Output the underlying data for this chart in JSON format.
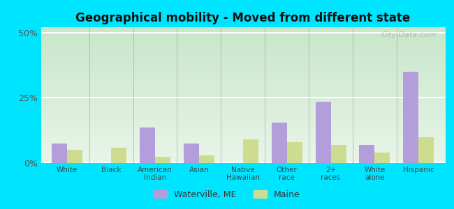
{
  "title": "Geographical mobility - Moved from different state",
  "categories": [
    "White",
    "Black",
    "American\nIndian",
    "Asian",
    "Native\nHawaiian",
    "Other\nrace",
    "2+\nraces",
    "White\nalone",
    "Hispanic"
  ],
  "waterville_values": [
    7.5,
    0,
    13.5,
    7.5,
    0,
    15.5,
    23.5,
    7.0,
    35.0
  ],
  "maine_values": [
    5.0,
    6.0,
    2.5,
    3.0,
    9.0,
    8.0,
    7.0,
    4.0,
    10.0
  ],
  "waterville_color": "#b39ddb",
  "maine_color": "#cddc8e",
  "ylim": [
    0,
    52
  ],
  "yticks": [
    0,
    25,
    50
  ],
  "ytick_labels": [
    "0%",
    "25%",
    "50%"
  ],
  "legend_labels": [
    "Waterville, ME",
    "Maine"
  ],
  "bg_outer": "#00e5ff",
  "bg_plot_color_top": "#c8e6c9",
  "bg_plot_color_bottom": "#e8f5e9",
  "grid_color": "#ffffff",
  "bar_width": 0.35,
  "watermark": "City-Data.com"
}
